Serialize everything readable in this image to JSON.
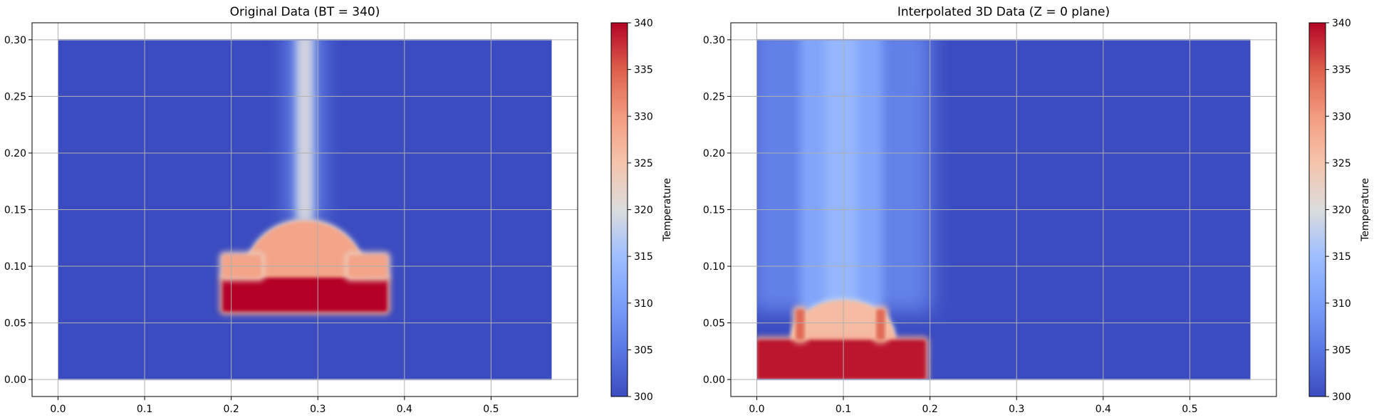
{
  "chart_data": [
    {
      "type": "heatmap",
      "title": "Original Data (BT = 340)",
      "xlim": [
        -0.03,
        0.6
      ],
      "ylim": [
        -0.015,
        0.315
      ],
      "x_ticks": [
        "0.0",
        "0.1",
        "0.2",
        "0.3",
        "0.4",
        "0.5"
      ],
      "y_ticks": [
        "0.00",
        "0.05",
        "0.10",
        "0.15",
        "0.20",
        "0.25",
        "0.30"
      ],
      "domain": {
        "x": [
          0.0,
          0.57
        ],
        "y": [
          0.0,
          0.3
        ]
      },
      "grid": true,
      "colormap": "coolwarm",
      "colorbar": {
        "label": "Temperature",
        "min": 300,
        "max": 340,
        "ticks": [
          "300",
          "305",
          "310",
          "315",
          "320",
          "325",
          "330",
          "335",
          "340"
        ]
      },
      "background_value": 300,
      "features": [
        {
          "kind": "rect",
          "x": [
            0.19,
            0.38
          ],
          "y": [
            0.06,
            0.09
          ],
          "value": 340
        },
        {
          "kind": "dome",
          "center_x": 0.285,
          "base_y": 0.09,
          "half_width": 0.07,
          "top_y": 0.14,
          "value": 329
        },
        {
          "kind": "rect",
          "x": [
            0.19,
            0.235
          ],
          "y": [
            0.09,
            0.11
          ],
          "value": 329
        },
        {
          "kind": "rect",
          "x": [
            0.335,
            0.38
          ],
          "y": [
            0.09,
            0.11
          ],
          "value": 329
        },
        {
          "kind": "plume",
          "x": [
            0.275,
            0.295
          ],
          "y": [
            0.14,
            0.3
          ],
          "value": 318
        }
      ]
    },
    {
      "type": "heatmap",
      "title": "Interpolated 3D Data (Z = 0 plane)",
      "xlim": [
        -0.03,
        0.6
      ],
      "ylim": [
        -0.015,
        0.315
      ],
      "x_ticks": [
        "0.0",
        "0.1",
        "0.2",
        "0.3",
        "0.4",
        "0.5"
      ],
      "y_ticks": [
        "0.00",
        "0.05",
        "0.10",
        "0.15",
        "0.20",
        "0.25",
        "0.30"
      ],
      "domain": {
        "x": [
          0.0,
          0.57
        ],
        "y": [
          0.0,
          0.3
        ]
      },
      "grid": true,
      "colormap": "coolwarm",
      "colorbar": {
        "label": "Temperature",
        "min": 300,
        "max": 340,
        "ticks": [
          "300",
          "305",
          "310",
          "315",
          "320",
          "325",
          "330",
          "335",
          "340"
        ]
      },
      "background_value": 300,
      "features": [
        {
          "kind": "rect",
          "x": [
            0.0,
            0.195
          ],
          "y": [
            0.0,
            0.035
          ],
          "value": 339
        },
        {
          "kind": "dome",
          "center_x": 0.1,
          "base_y": 0.035,
          "half_width": 0.06,
          "top_y": 0.07,
          "value": 326
        },
        {
          "kind": "rect",
          "x": [
            0.045,
            0.055
          ],
          "y": [
            0.035,
            0.062
          ],
          "value": 334
        },
        {
          "kind": "rect",
          "x": [
            0.138,
            0.148
          ],
          "y": [
            0.035,
            0.062
          ],
          "value": 334
        },
        {
          "kind": "plume",
          "x": [
            0.05,
            0.145
          ],
          "y": [
            0.06,
            0.3
          ],
          "value": 311
        }
      ]
    }
  ]
}
